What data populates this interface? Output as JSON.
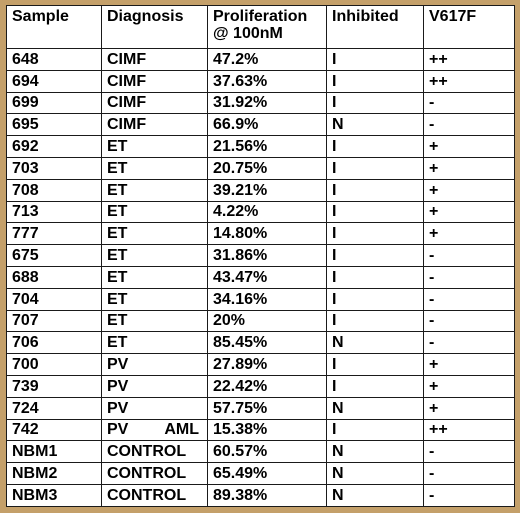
{
  "headers": [
    "Sample",
    "Diagnosis",
    "Proliferation\n@ 100nM",
    "Inhibited",
    "V617F"
  ],
  "header_prolif_line1": "Proliferation",
  "header_prolif_line2": "@ 100nM",
  "rows": [
    {
      "sample": "648",
      "diagnosis": "CIMF",
      "extra": "",
      "proliferation": "47.2%",
      "inhibited": "I",
      "v617f": "++"
    },
    {
      "sample": "694",
      "diagnosis": "CIMF",
      "extra": "",
      "proliferation": "37.63%",
      "inhibited": "I",
      "v617f": "++"
    },
    {
      "sample": "699",
      "diagnosis": "CIMF",
      "extra": "",
      "proliferation": "31.92%",
      "inhibited": "I",
      "v617f": "-"
    },
    {
      "sample": "695",
      "diagnosis": "CIMF",
      "extra": "",
      "proliferation": "66.9%",
      "inhibited": "N",
      "v617f": "-"
    },
    {
      "sample": "692",
      "diagnosis": "ET",
      "extra": "",
      "proliferation": "21.56%",
      "inhibited": "I",
      "v617f": "+"
    },
    {
      "sample": "703",
      "diagnosis": "ET",
      "extra": "",
      "proliferation": "20.75%",
      "inhibited": "I",
      "v617f": "+"
    },
    {
      "sample": "708",
      "diagnosis": "ET",
      "extra": "",
      "proliferation": "39.21%",
      "inhibited": "I",
      "v617f": "+"
    },
    {
      "sample": "713",
      "diagnosis": "ET",
      "extra": "",
      "proliferation": "4.22%",
      "inhibited": "I",
      "v617f": "+"
    },
    {
      "sample": "777",
      "diagnosis": "ET",
      "extra": "",
      "proliferation": "14.80%",
      "inhibited": "I",
      "v617f": "+"
    },
    {
      "sample": "675",
      "diagnosis": "ET",
      "extra": "",
      "proliferation": "31.86%",
      "inhibited": "I",
      "v617f": "-"
    },
    {
      "sample": "688",
      "diagnosis": "ET",
      "extra": "",
      "proliferation": "43.47%",
      "inhibited": "I",
      "v617f": "-"
    },
    {
      "sample": "704",
      "diagnosis": "ET",
      "extra": "",
      "proliferation": "34.16%",
      "inhibited": "I",
      "v617f": "-"
    },
    {
      "sample": "707",
      "diagnosis": "ET",
      "extra": "",
      "proliferation": "20%",
      "inhibited": "I",
      "v617f": "-"
    },
    {
      "sample": "706",
      "diagnosis": "ET",
      "extra": "",
      "proliferation": "85.45%",
      "inhibited": "N",
      "v617f": "-"
    },
    {
      "sample": "700",
      "diagnosis": "PV",
      "extra": "",
      "proliferation": "27.89%",
      "inhibited": "I",
      "v617f": "+"
    },
    {
      "sample": "739",
      "diagnosis": "PV",
      "extra": "",
      "proliferation": "22.42%",
      "inhibited": "I",
      "v617f": "+"
    },
    {
      "sample": "724",
      "diagnosis": "PV",
      "extra": "",
      "proliferation": "57.75%",
      "inhibited": "N",
      "v617f": "+"
    },
    {
      "sample": "742",
      "diagnosis": "PV",
      "extra": "AML",
      "proliferation": "15.38%",
      "inhibited": "I",
      "v617f": "++"
    },
    {
      "sample": "NBM1",
      "diagnosis": "CONTROL",
      "extra": "",
      "proliferation": "60.57%",
      "inhibited": "N",
      "v617f": "-"
    },
    {
      "sample": "NBM2",
      "diagnosis": "CONTROL",
      "extra": "",
      "proliferation": "65.49%",
      "inhibited": "N",
      "v617f": "-"
    },
    {
      "sample": "NBM3",
      "diagnosis": "CONTROL",
      "extra": "",
      "proliferation": "89.38%",
      "inhibited": "N",
      "v617f": "-"
    }
  ],
  "colors": {
    "frame": "#c4a06a",
    "background": "#ffffff",
    "border": "#1a1a1a",
    "text": "#000000"
  }
}
